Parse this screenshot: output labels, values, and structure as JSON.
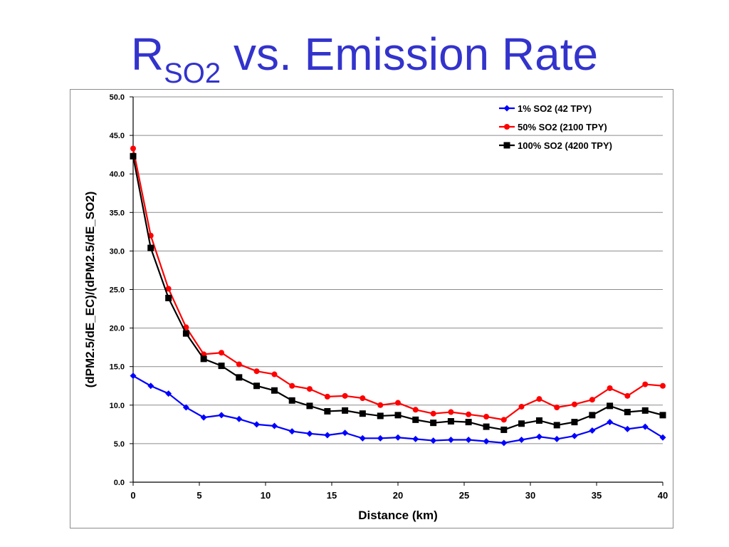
{
  "slide": {
    "title_main": "R",
    "title_sub": "SO2",
    "title_rest": " vs. Emission Rate"
  },
  "chart_data": {
    "type": "line",
    "xlabel": "Distance (km)",
    "ylabel": "(dPM2.5/dE_EC)/(dPM2.5/dE_SO2)",
    "xlim": [
      0,
      40
    ],
    "ylim": [
      0,
      50
    ],
    "x_ticks": [
      "0",
      "5",
      "10",
      "15",
      "20",
      "25",
      "30",
      "35",
      "40"
    ],
    "y_ticks": [
      "0.0",
      "5.0",
      "10.0",
      "15.0",
      "20.0",
      "25.0",
      "30.0",
      "35.0",
      "40.0",
      "45.0",
      "50.0"
    ],
    "grid": "horizontal",
    "legend_position": "top-right",
    "x": [
      0,
      1.33,
      2.67,
      4,
      5.33,
      6.67,
      8,
      9.33,
      10.67,
      12,
      13.33,
      14.67,
      16,
      17.33,
      18.67,
      20,
      21.33,
      22.67,
      24,
      25.33,
      26.67,
      28,
      29.33,
      30.67,
      32,
      33.33,
      34.67,
      36,
      37.33,
      38.67,
      40
    ],
    "series": [
      {
        "name": "1% SO2 (42 TPY)",
        "color": "#0000ff",
        "marker": "diamond",
        "values": [
          13.8,
          12.5,
          11.5,
          9.7,
          8.4,
          8.7,
          8.2,
          7.5,
          7.3,
          6.6,
          6.3,
          6.1,
          6.4,
          5.7,
          5.7,
          5.8,
          5.6,
          5.4,
          5.5,
          5.5,
          5.3,
          5.1,
          5.5,
          5.9,
          5.6,
          6.0,
          6.7,
          7.8,
          6.9,
          7.2,
          5.8
        ]
      },
      {
        "name": "50% SO2 (2100 TPY)",
        "color": "#ff0000",
        "marker": "circle",
        "values": [
          43.3,
          32.0,
          25.1,
          20.1,
          16.6,
          16.8,
          15.3,
          14.4,
          14.0,
          12.5,
          12.1,
          11.1,
          11.2,
          10.9,
          10.0,
          10.3,
          9.4,
          8.9,
          9.1,
          8.8,
          8.5,
          8.1,
          9.8,
          10.8,
          9.7,
          10.1,
          10.7,
          12.2,
          11.2,
          12.7,
          12.5
        ]
      },
      {
        "name": "100% SO2 (4200 TPY)",
        "color": "#000000",
        "marker": "square",
        "values": [
          42.3,
          30.4,
          23.9,
          19.3,
          16.0,
          15.1,
          13.6,
          12.5,
          11.9,
          10.6,
          9.9,
          9.2,
          9.3,
          8.9,
          8.6,
          8.7,
          8.1,
          7.7,
          7.9,
          7.8,
          7.2,
          6.8,
          7.6,
          8.0,
          7.4,
          7.8,
          8.7,
          9.9,
          9.1,
          9.3,
          8.7
        ]
      }
    ]
  }
}
